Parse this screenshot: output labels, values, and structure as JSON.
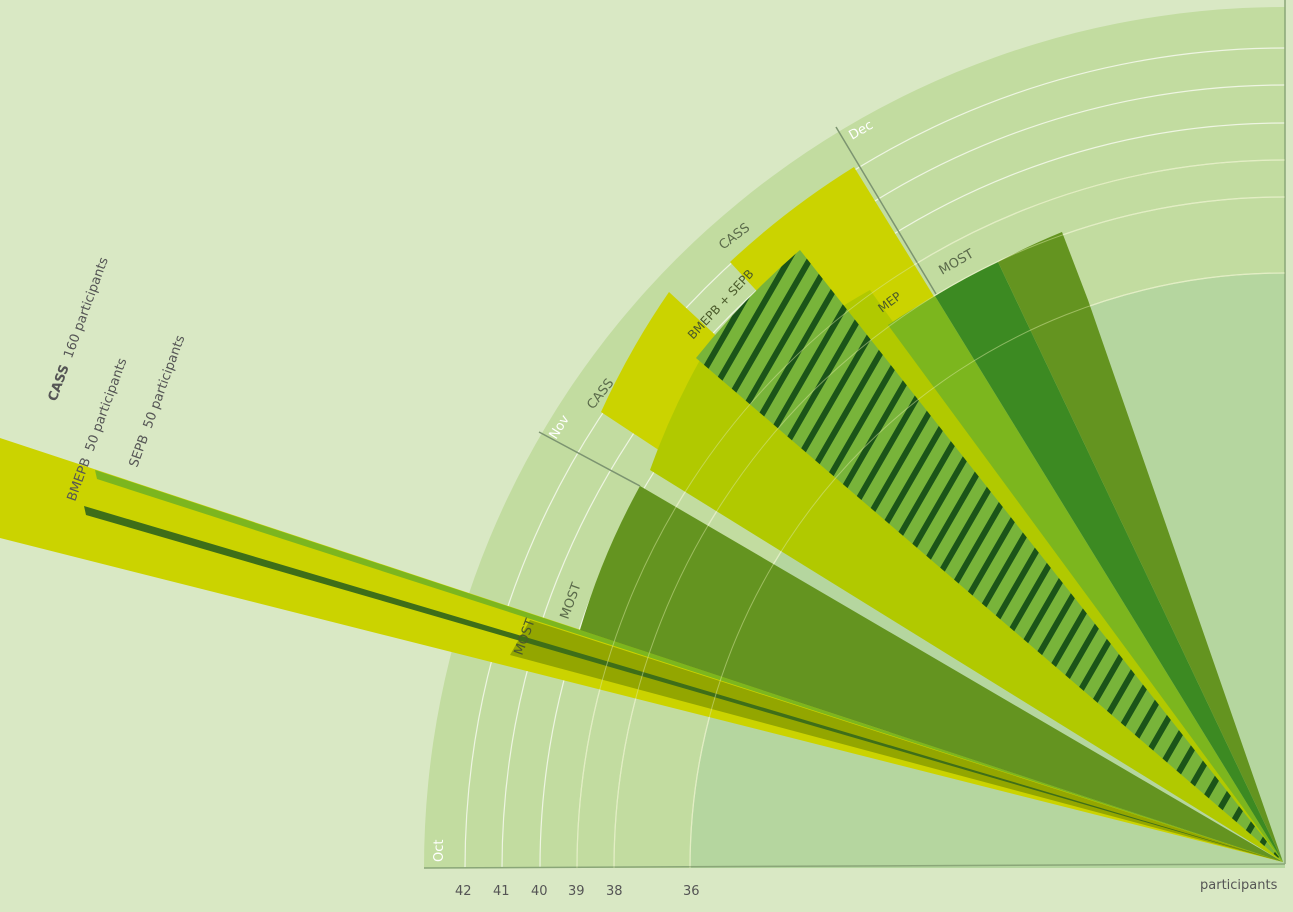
{
  "axis": {
    "months": [
      "Oct",
      "Nov",
      "Dec"
    ],
    "ticks": [
      "42",
      "41",
      "40",
      "39",
      "38",
      "36"
    ],
    "unit": "participants"
  },
  "legend": [
    {
      "program": "CASS",
      "count": "160 participants"
    },
    {
      "program": "BMEPB",
      "count": "50 participants"
    },
    {
      "program": "SEPB",
      "count": "50 participants"
    }
  ],
  "labels": {
    "most_1": "MOST",
    "most_2": "MOST",
    "cass_nov": "CASS",
    "bmepb_sepb": "BMEPB + SEPB",
    "cass_top": "CASS",
    "mep": "MEP",
    "most_dec": "MOST"
  },
  "colors": {
    "background": "#d9e8c4",
    "rings": "#c2dca0",
    "inner": "#b5d69f",
    "yellow": "#cbd300",
    "yellow_green": "#b1c900",
    "olive_dark": "#8a9e00",
    "green_dark": "#649420",
    "green_light": "#7cb61e",
    "green_deep": "#3c8a22",
    "green_stripe": "#1b5418"
  }
}
